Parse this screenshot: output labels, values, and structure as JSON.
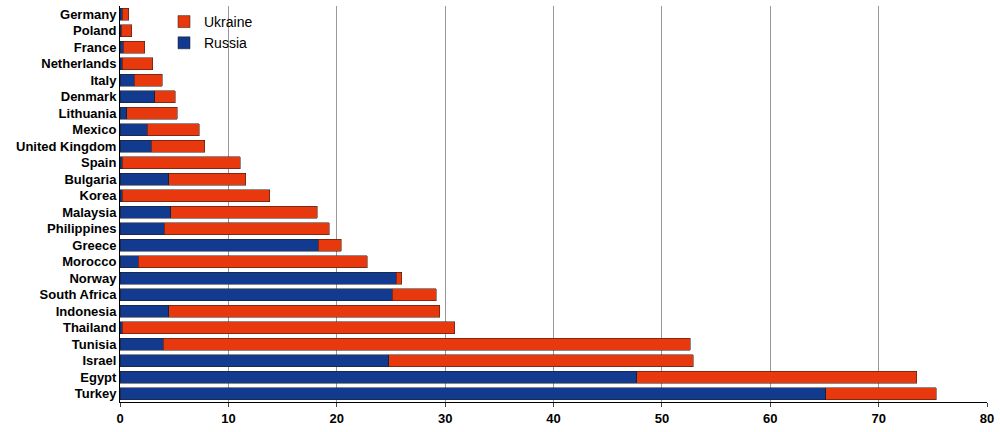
{
  "chart_data": {
    "type": "bar",
    "orientation": "horizontal",
    "stacked": true,
    "grid": true,
    "legend": "top",
    "categories": [
      "Germany",
      "Poland",
      "France",
      "Netherlands",
      "Italy",
      "Denmark",
      "Lithuania",
      "Mexico",
      "United Kingdom",
      "Spain",
      "Bulgaria",
      "Korea",
      "Malaysia",
      "Philippines",
      "Greece",
      "Morocco",
      "Norway",
      "South Africa",
      "Indonesia",
      "Thailand",
      "Tunisia",
      "Israel",
      "Egypt",
      "Turkey"
    ],
    "series": [
      {
        "name": "Russia",
        "color": "#123a8f",
        "values": [
          0.2,
          0.1,
          0.3,
          0.2,
          1.3,
          3.2,
          0.6,
          2.5,
          2.9,
          0.2,
          4.5,
          0.2,
          4.7,
          4.1,
          18.3,
          1.7,
          25.5,
          25.1,
          4.5,
          0.2,
          4.0,
          24.8,
          47.7,
          65.1
        ]
      },
      {
        "name": "Ukraine",
        "color": "#e8380d",
        "values": [
          0.6,
          1.0,
          2.0,
          2.8,
          2.6,
          1.9,
          4.7,
          4.8,
          4.9,
          10.9,
          7.1,
          13.6,
          13.5,
          15.2,
          2.1,
          21.1,
          0.5,
          4.1,
          25.0,
          30.7,
          48.6,
          28.1,
          25.8,
          10.2
        ]
      }
    ],
    "xlim": [
      0,
      80
    ],
    "xticks": [
      0,
      10,
      20,
      30,
      40,
      50,
      60,
      70,
      80
    ]
  }
}
